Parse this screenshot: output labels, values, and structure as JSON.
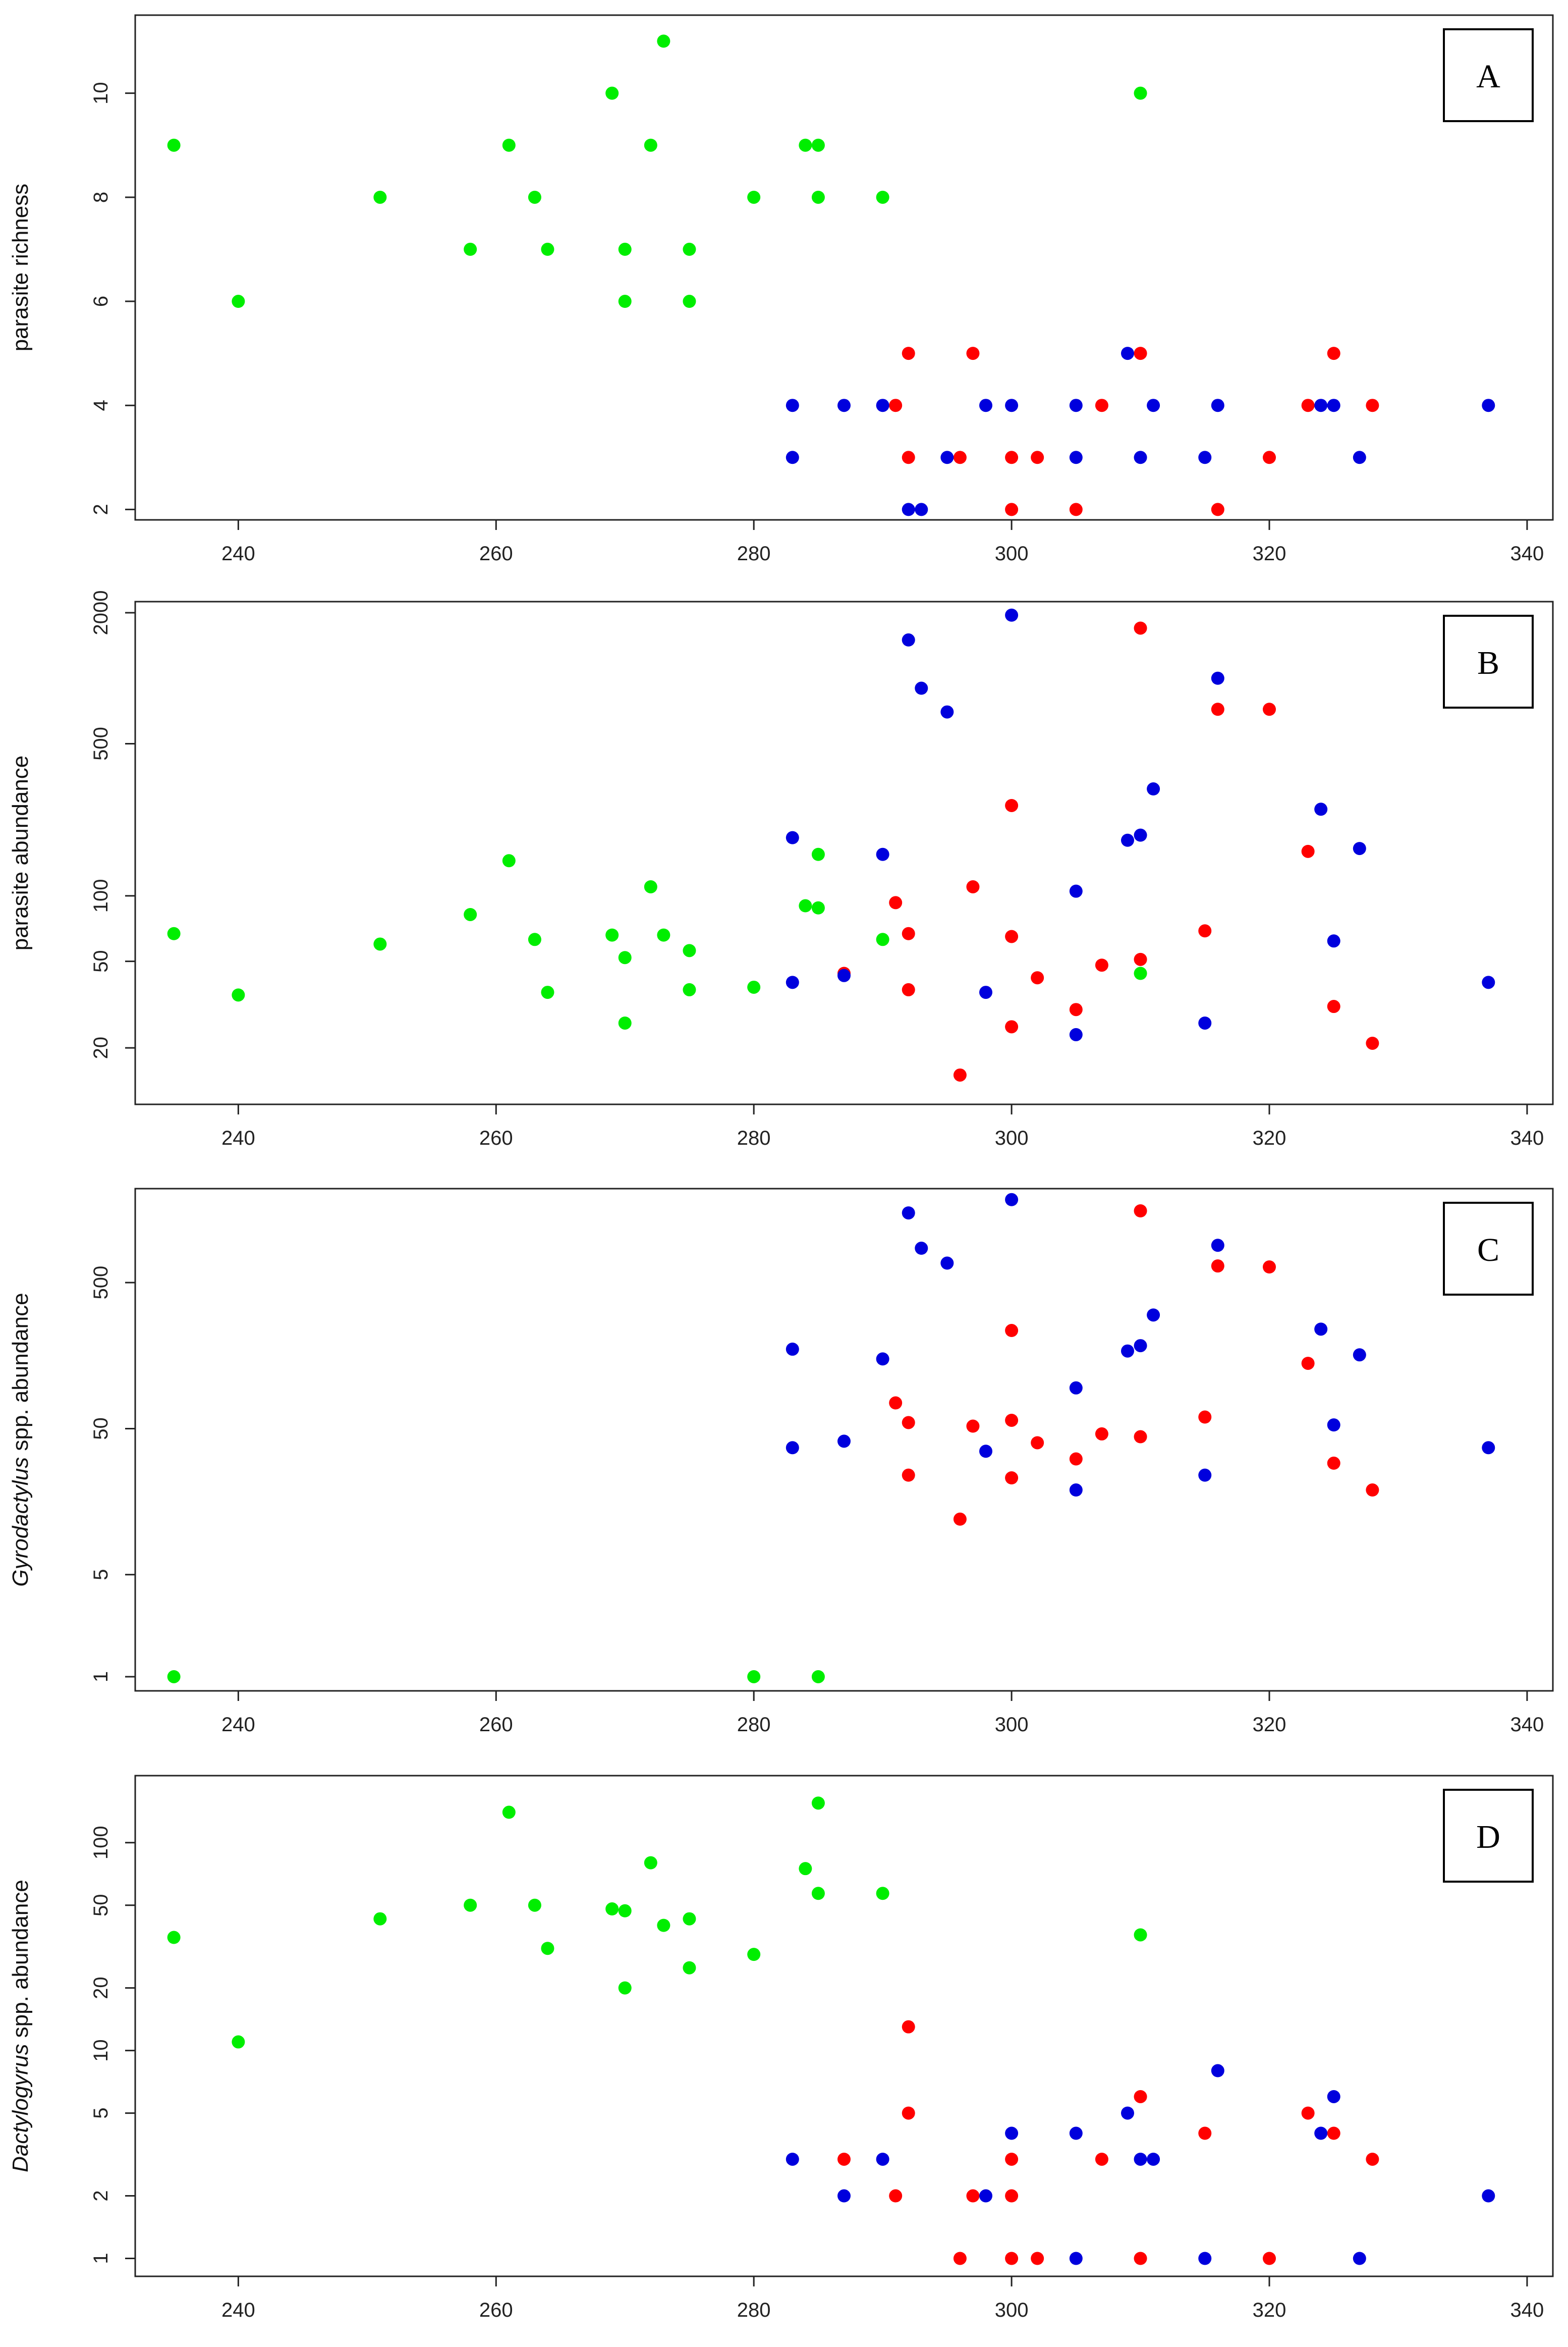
{
  "colors": {
    "green": "#00ee00",
    "red": "#ff0000",
    "blue": "#0000dd",
    "frame": "#222222"
  },
  "chart_data": [
    {
      "panel": "A",
      "type": "scatter",
      "xlabel": "",
      "ylabel": "parasite richness",
      "yscale": "linear",
      "xlim": [
        232,
        342
      ],
      "ylim": [
        1.8,
        11.5
      ],
      "xticks": [
        240,
        260,
        280,
        300,
        320,
        340
      ],
      "yticks": [
        2,
        4,
        6,
        8,
        10
      ],
      "series": [
        {
          "name": "green",
          "color": "#00ee00",
          "points": [
            [
              235,
              9
            ],
            [
              240,
              6
            ],
            [
              251,
              8
            ],
            [
              258,
              7
            ],
            [
              261,
              9
            ],
            [
              263,
              8
            ],
            [
              264,
              7
            ],
            [
              269,
              10
            ],
            [
              270,
              7
            ],
            [
              270,
              6
            ],
            [
              272,
              9
            ],
            [
              273,
              11
            ],
            [
              275,
              7
            ],
            [
              275,
              6
            ],
            [
              280,
              8
            ],
            [
              284,
              9
            ],
            [
              285,
              9
            ],
            [
              285,
              8
            ],
            [
              290,
              8
            ],
            [
              310,
              10
            ]
          ]
        },
        {
          "name": "red",
          "color": "#ff0000",
          "points": [
            [
              291,
              4
            ],
            [
              292,
              5
            ],
            [
              292,
              3
            ],
            [
              296,
              3
            ],
            [
              297,
              5
            ],
            [
              300,
              3
            ],
            [
              300,
              2
            ],
            [
              302,
              3
            ],
            [
              305,
              2
            ],
            [
              307,
              4
            ],
            [
              310,
              5
            ],
            [
              316,
              2
            ],
            [
              320,
              3
            ],
            [
              323,
              4
            ],
            [
              325,
              5
            ],
            [
              328,
              4
            ]
          ]
        },
        {
          "name": "blue",
          "color": "#0000dd",
          "points": [
            [
              283,
              4
            ],
            [
              283,
              3
            ],
            [
              287,
              4
            ],
            [
              290,
              4
            ],
            [
              292,
              2
            ],
            [
              293,
              2
            ],
            [
              295,
              3
            ],
            [
              298,
              4
            ],
            [
              300,
              4
            ],
            [
              305,
              4
            ],
            [
              305,
              3
            ],
            [
              309,
              5
            ],
            [
              310,
              3
            ],
            [
              311,
              4
            ],
            [
              315,
              3
            ],
            [
              316,
              4
            ],
            [
              324,
              4
            ],
            [
              325,
              4
            ],
            [
              327,
              3
            ],
            [
              337,
              4
            ]
          ]
        }
      ]
    },
    {
      "panel": "B",
      "type": "scatter",
      "xlabel": "",
      "ylabel": "parasite abundance",
      "yscale": "log",
      "xlim": [
        232,
        342
      ],
      "ylim": [
        11,
        2250
      ],
      "xticks": [
        240,
        260,
        280,
        300,
        320,
        340
      ],
      "yticks": [
        20,
        50,
        100,
        500,
        2000
      ],
      "series": [
        {
          "name": "green",
          "color": "#00ee00",
          "points": [
            [
              235,
              67
            ],
            [
              240,
              35
            ],
            [
              251,
              60
            ],
            [
              258,
              82
            ],
            [
              261,
              145
            ],
            [
              263,
              63
            ],
            [
              264,
              36
            ],
            [
              269,
              66
            ],
            [
              270,
              52
            ],
            [
              270,
              26
            ],
            [
              272,
              110
            ],
            [
              273,
              66
            ],
            [
              275,
              56
            ],
            [
              275,
              37
            ],
            [
              280,
              38
            ],
            [
              284,
              90
            ],
            [
              285,
              155
            ],
            [
              285,
              88
            ],
            [
              290,
              63
            ],
            [
              310,
              44
            ]
          ]
        },
        {
          "name": "red",
          "color": "#ff0000",
          "points": [
            [
              287,
              44
            ],
            [
              291,
              93
            ],
            [
              292,
              67
            ],
            [
              292,
              37
            ],
            [
              296,
              15
            ],
            [
              297,
              110
            ],
            [
              300,
              260
            ],
            [
              300,
              65
            ],
            [
              300,
              25
            ],
            [
              302,
              42
            ],
            [
              305,
              30
            ],
            [
              307,
              48
            ],
            [
              310,
              1700
            ],
            [
              310,
              51
            ],
            [
              315,
              69
            ],
            [
              316,
              720
            ],
            [
              320,
              720
            ],
            [
              323,
              160
            ],
            [
              325,
              31
            ],
            [
              328,
              21
            ]
          ]
        },
        {
          "name": "blue",
          "color": "#0000dd",
          "points": [
            [
              283,
              185
            ],
            [
              283,
              40
            ],
            [
              287,
              43
            ],
            [
              290,
              155
            ],
            [
              292,
              1500
            ],
            [
              293,
              900
            ],
            [
              295,
              700
            ],
            [
              298,
              36
            ],
            [
              300,
              1950
            ],
            [
              305,
              105
            ],
            [
              305,
              23
            ],
            [
              309,
              180
            ],
            [
              310,
              190
            ],
            [
              311,
              310
            ],
            [
              315,
              26
            ],
            [
              316,
              1000
            ],
            [
              324,
              250
            ],
            [
              325,
              62
            ],
            [
              327,
              165
            ],
            [
              337,
              40
            ]
          ]
        }
      ]
    },
    {
      "panel": "C",
      "type": "scatter",
      "xlabel": "",
      "ylabel": "Gyrodactylus spp. abundance",
      "yscale": "log",
      "xlim": [
        232,
        342
      ],
      "ylim": [
        0.8,
        2200
      ],
      "xticks": [
        240,
        260,
        280,
        300,
        320,
        340
      ],
      "yticks": [
        1,
        5,
        50,
        500
      ],
      "series": [
        {
          "name": "green",
          "color": "#00ee00",
          "points": [
            [
              235,
              1
            ],
            [
              280,
              1
            ],
            [
              285,
              1
            ]
          ]
        },
        {
          "name": "red",
          "color": "#ff0000",
          "points": [
            [
              291,
              75
            ],
            [
              292,
              55
            ],
            [
              292,
              24
            ],
            [
              296,
              12
            ],
            [
              297,
              52
            ],
            [
              300,
              57
            ],
            [
              300,
              23
            ],
            [
              300,
              235
            ],
            [
              302,
              40
            ],
            [
              305,
              31
            ],
            [
              307,
              46
            ],
            [
              310,
              1550
            ],
            [
              310,
              44
            ],
            [
              315,
              60
            ],
            [
              316,
              650
            ],
            [
              320,
              640
            ],
            [
              323,
              140
            ],
            [
              325,
              29
            ],
            [
              328,
              19
            ]
          ]
        },
        {
          "name": "blue",
          "color": "#0000dd",
          "points": [
            [
              283,
              175
            ],
            [
              283,
              37
            ],
            [
              287,
              41
            ],
            [
              290,
              150
            ],
            [
              292,
              1500
            ],
            [
              293,
              860
            ],
            [
              295,
              680
            ],
            [
              298,
              35
            ],
            [
              300,
              1850
            ],
            [
              305,
              95
            ],
            [
              305,
              19
            ],
            [
              309,
              170
            ],
            [
              310,
              185
            ],
            [
              311,
              300
            ],
            [
              315,
              24
            ],
            [
              316,
              900
            ],
            [
              324,
              240
            ],
            [
              325,
              53
            ],
            [
              327,
              160
            ],
            [
              337,
              37
            ]
          ]
        }
      ]
    },
    {
      "panel": "D",
      "type": "scatter",
      "xlabel": "",
      "ylabel": "Dactylogyrus spp. abundance",
      "yscale": "log",
      "xlim": [
        232,
        342
      ],
      "ylim": [
        0.82,
        210
      ],
      "xticks": [
        240,
        260,
        280,
        300,
        320,
        340
      ],
      "yticks": [
        1,
        2,
        5,
        10,
        20,
        50,
        100
      ],
      "series": [
        {
          "name": "green",
          "color": "#00ee00",
          "points": [
            [
              235,
              35
            ],
            [
              240,
              11
            ],
            [
              251,
              43
            ],
            [
              258,
              50
            ],
            [
              261,
              140
            ],
            [
              263,
              50
            ],
            [
              264,
              31
            ],
            [
              269,
              48
            ],
            [
              270,
              47
            ],
            [
              270,
              20
            ],
            [
              272,
              80
            ],
            [
              273,
              40
            ],
            [
              275,
              43
            ],
            [
              275,
              25
            ],
            [
              280,
              29
            ],
            [
              284,
              75
            ],
            [
              285,
              155
            ],
            [
              285,
              57
            ],
            [
              290,
              57
            ],
            [
              310,
              36
            ]
          ]
        },
        {
          "name": "red",
          "color": "#ff0000",
          "points": [
            [
              287,
              3
            ],
            [
              291,
              2
            ],
            [
              292,
              13
            ],
            [
              292,
              5
            ],
            [
              296,
              1
            ],
            [
              297,
              2
            ],
            [
              300,
              3
            ],
            [
              300,
              2
            ],
            [
              300,
              1
            ],
            [
              302,
              1
            ],
            [
              307,
              3
            ],
            [
              310,
              6
            ],
            [
              310,
              1
            ],
            [
              315,
              4
            ],
            [
              320,
              1
            ],
            [
              323,
              5
            ],
            [
              325,
              4
            ],
            [
              328,
              3
            ]
          ]
        },
        {
          "name": "blue",
          "color": "#0000dd",
          "points": [
            [
              283,
              3
            ],
            [
              287,
              2
            ],
            [
              290,
              3
            ],
            [
              298,
              2
            ],
            [
              300,
              4
            ],
            [
              305,
              4
            ],
            [
              305,
              1
            ],
            [
              309,
              5
            ],
            [
              310,
              3
            ],
            [
              311,
              3
            ],
            [
              315,
              1
            ],
            [
              316,
              8
            ],
            [
              324,
              4
            ],
            [
              325,
              6
            ],
            [
              327,
              1
            ],
            [
              337,
              2
            ]
          ]
        }
      ]
    }
  ]
}
